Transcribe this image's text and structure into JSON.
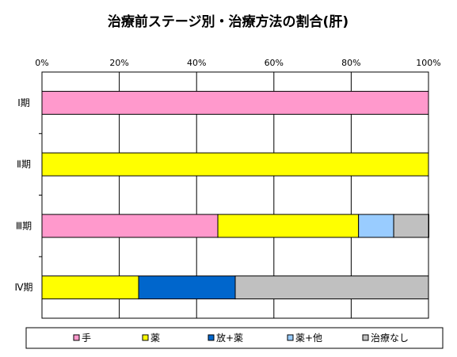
{
  "chart_data": {
    "type": "bar",
    "orientation": "horizontal",
    "stacked": true,
    "title": "治療前ステージ別・治療方法の割合(肝)",
    "categories": [
      "Ⅰ期",
      "Ⅱ期",
      "Ⅲ期",
      "Ⅳ期"
    ],
    "xlim": [
      0,
      100
    ],
    "x_ticks": [
      "0%",
      "20%",
      "40%",
      "60%",
      "80%",
      "100%"
    ],
    "x_tick_values": [
      0,
      20,
      40,
      60,
      80,
      100
    ],
    "x_axis_position": "top",
    "grid": true,
    "legend": "bottom",
    "series": [
      {
        "name": "手",
        "color": "#FF99CC",
        "values": [
          100,
          0,
          45.5,
          0
        ]
      },
      {
        "name": "薬",
        "color": "#FFFF00",
        "values": [
          0,
          100,
          36.4,
          25
        ]
      },
      {
        "name": "放+薬",
        "color": "#0066CC",
        "values": [
          0,
          0,
          0,
          25
        ]
      },
      {
        "name": "薬+他",
        "color": "#99CCFF",
        "values": [
          0,
          0,
          9.1,
          0
        ]
      },
      {
        "name": "治療なし",
        "color": "#C0C0C0",
        "values": [
          0,
          0,
          9.1,
          50
        ]
      }
    ]
  }
}
